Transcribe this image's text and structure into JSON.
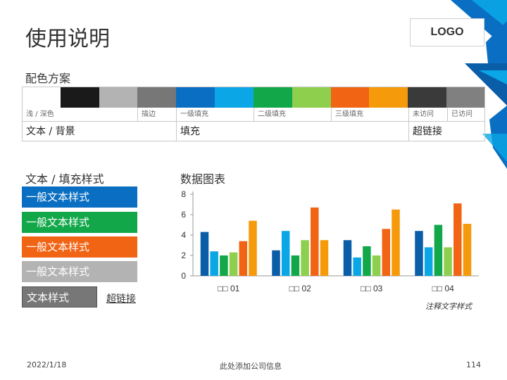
{
  "page": {
    "title": "使用说明",
    "logo": "LOGO",
    "color_scheme_title": "配色方案",
    "swatch_colors": [
      "#ffffff",
      "#1a1a1a",
      "#b3b3b3",
      "#777777",
      "#0a6fc2",
      "#0aa6e6",
      "#12a84a",
      "#8fcf4e",
      "#f06414",
      "#f59a0a",
      "#3a3a3a",
      "#808080"
    ],
    "labels": {
      "light_dark": "浅 / 深色",
      "stroke": "描边",
      "fill1": "一级填充",
      "fill2": "二级填充",
      "fill3": "三级填充",
      "unvisited": "未访问",
      "visited": "已访问"
    },
    "categories": {
      "text_bg": "文本 / 背景",
      "fill": "填充",
      "hyperlink": "超链接"
    },
    "text_fill_title": "文本 / 填充样式",
    "chart_title": "数据图表",
    "styles": [
      {
        "text": "一般文本样式",
        "color": "#0a6fc2"
      },
      {
        "text": "一般文本样式",
        "color": "#12a84a"
      },
      {
        "text": "一般文本样式",
        "color": "#f06414"
      },
      {
        "text": "一般文本样式",
        "color": "#b3b3b3"
      }
    ],
    "text_style_dark": "文本样式",
    "text_style_dark_color": "#777777",
    "hyperlink_label": "超链接",
    "annotation": "注释文字样式",
    "footer": {
      "date": "2022/1/18",
      "company": "此处添加公司信息",
      "page_number": "114"
    }
  },
  "chart_data": {
    "type": "bar",
    "categories": [
      "□□ 01",
      "□□ 02",
      "□□ 03",
      "□□ 04"
    ],
    "series": [
      {
        "color": "#0a5ea8",
        "values": [
          4.3,
          2.5,
          3.5,
          4.4
        ]
      },
      {
        "color": "#0aa6e6",
        "values": [
          2.4,
          4.4,
          1.8,
          2.8
        ]
      },
      {
        "color": "#12a84a",
        "values": [
          2.0,
          2.0,
          2.9,
          5.0
        ]
      },
      {
        "color": "#8fcf4e",
        "values": [
          2.3,
          3.5,
          2.0,
          2.8
        ]
      },
      {
        "color": "#f06414",
        "values": [
          3.4,
          6.7,
          4.6,
          7.1
        ]
      },
      {
        "color": "#f59a0a",
        "values": [
          5.4,
          3.5,
          6.5,
          5.1
        ]
      }
    ],
    "y_ticks": [
      "0",
      "2",
      "4",
      "6",
      "8"
    ],
    "ylim": [
      0,
      8
    ],
    "grid": false
  }
}
